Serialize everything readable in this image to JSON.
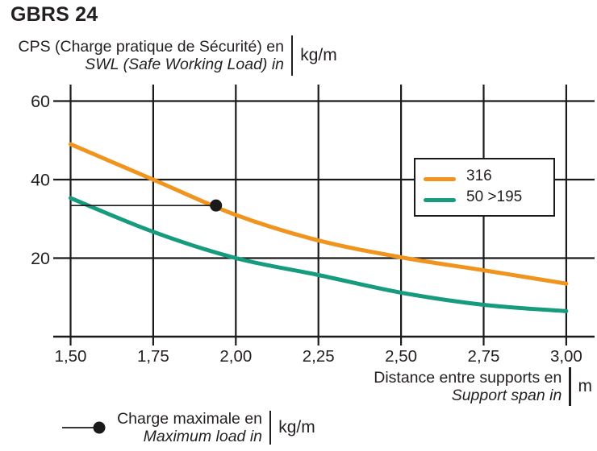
{
  "header": {
    "title": "GBRS 24",
    "y_axis_label_fr": "CPS (Charge pratique de Sécurité) en",
    "y_axis_label_en": "SWL (Safe Working Load) in",
    "y_axis_unit": "kg/m"
  },
  "x_axis_label": {
    "fr": "Distance entre supports en",
    "en": "Support span in",
    "unit": "m"
  },
  "maxload_legend": {
    "fr": "Charge maximale en",
    "en": "Maximum load in",
    "unit": "kg/m"
  },
  "legend": {
    "items": [
      {
        "label": "316",
        "color": "#F0941E"
      },
      {
        "label": "50 >195",
        "color": "#179B7E"
      }
    ]
  },
  "chart_data": {
    "type": "line",
    "title": "GBRS 24",
    "xlabel": "Distance entre supports en / Support span in (m)",
    "ylabel": "CPS (Charge pratique de Sécurité) en / SWL (Safe Working Load) in (kg/m)",
    "x": [
      1.5,
      1.75,
      2.0,
      2.25,
      2.5,
      2.75,
      3.0
    ],
    "x_tick_labels": [
      "1,50",
      "1,75",
      "2,00",
      "2,25",
      "2,50",
      "2,75",
      "3,00"
    ],
    "y_ticks": [
      60,
      40,
      20
    ],
    "y_tick_labels": [
      "60",
      "40",
      "20"
    ],
    "xlim": [
      1.5,
      3.0
    ],
    "ylim": [
      0,
      64
    ],
    "grid": true,
    "legend_position": "upper right",
    "series": [
      {
        "name": "316",
        "color": "#F0941E",
        "values": [
          49,
          40,
          31,
          24.5,
          20.2,
          16.9,
          13.5
        ]
      },
      {
        "name": "50 >195",
        "color": "#179B7E",
        "values": [
          35.3,
          26.7,
          20,
          15.7,
          11.2,
          8.1,
          6.5
        ]
      }
    ],
    "max_load_marker": {
      "value_kg_m": 33.4,
      "span_m": 1.94
    }
  },
  "colors": {
    "text": "#231f20",
    "grid": "#1a1a1a",
    "background": "#ffffff"
  }
}
